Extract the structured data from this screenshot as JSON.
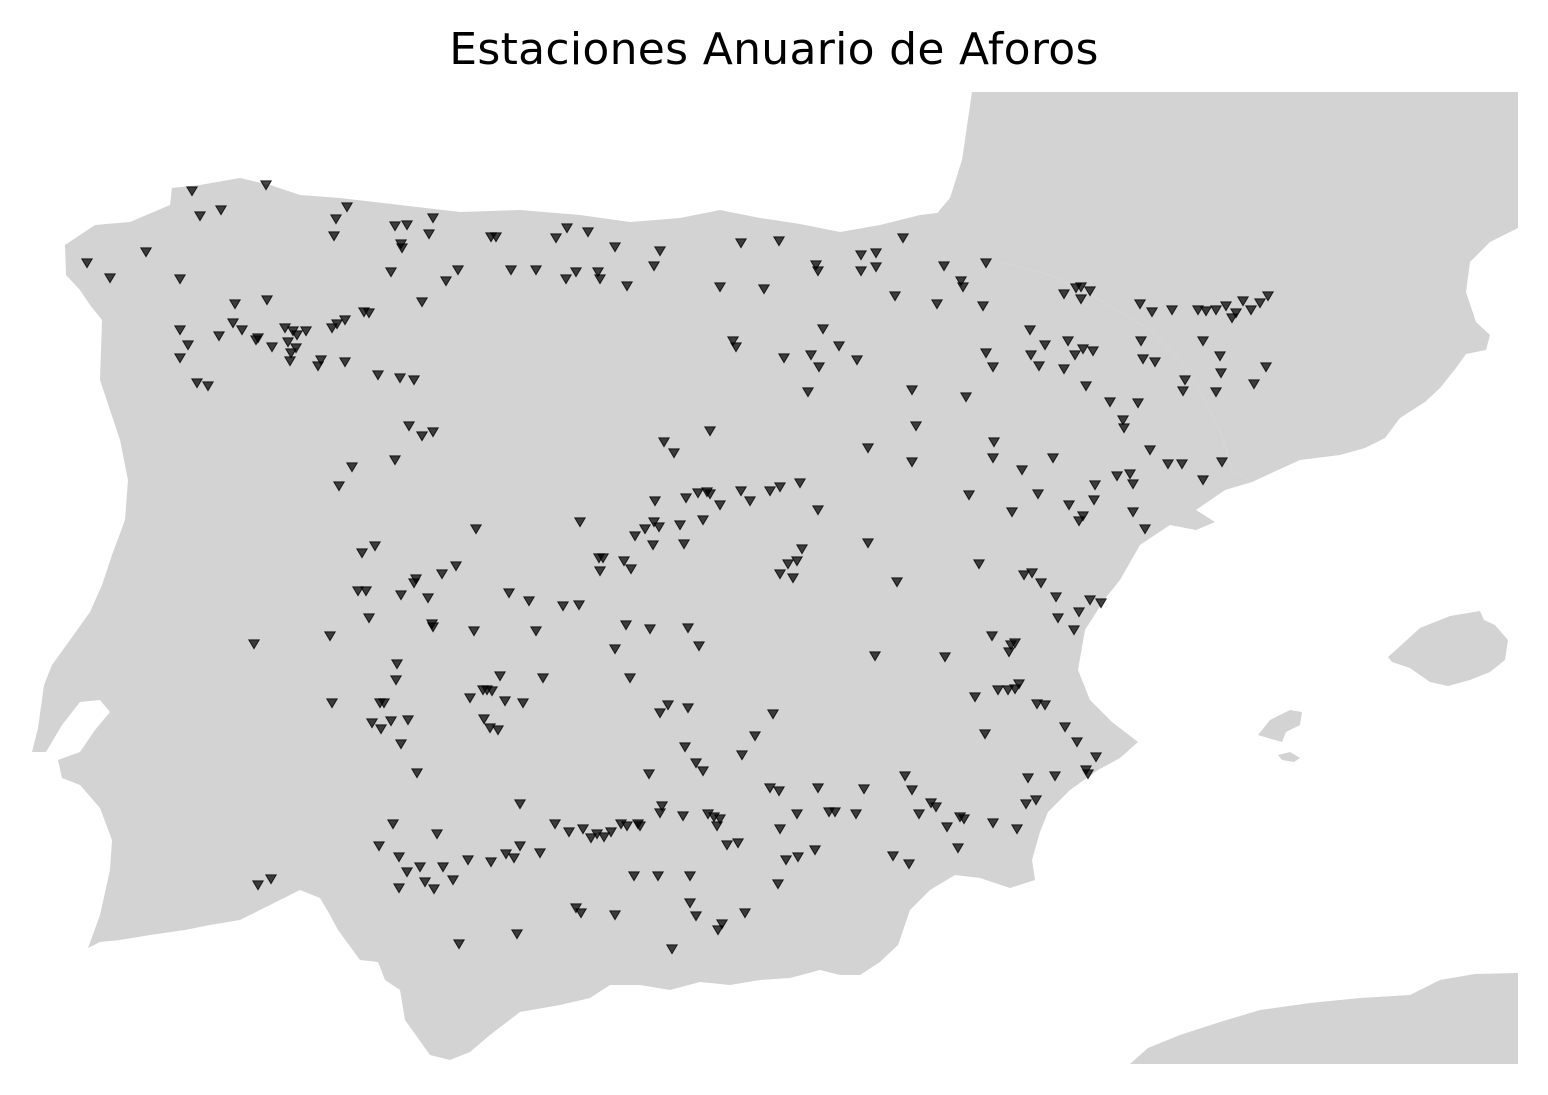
{
  "figure": {
    "title": "Estaciones Anuario de Aforos"
  },
  "colors": {
    "background": "#ffffff",
    "land": "#d3d3d3",
    "marker": "#000000"
  },
  "map": {
    "marker_symbol": "triangle-down",
    "legend": "none",
    "axes": "hidden",
    "landmasses": [
      "iberian-peninsula",
      "france",
      "mallorca",
      "ibiza",
      "formentera",
      "north-africa"
    ],
    "stations": [
      [
        87,
        263
      ],
      [
        110,
        278
      ],
      [
        146,
        252
      ],
      [
        180,
        279
      ],
      [
        192,
        191
      ],
      [
        200,
        216
      ],
      [
        221,
        210
      ],
      [
        266,
        185
      ],
      [
        336,
        219
      ],
      [
        347,
        207
      ],
      [
        334,
        236
      ],
      [
        395,
        226
      ],
      [
        407,
        225
      ],
      [
        433,
        218
      ],
      [
        401,
        244
      ],
      [
        402,
        248
      ],
      [
        429,
        234
      ],
      [
        391,
        272
      ],
      [
        422,
        302
      ],
      [
        446,
        281
      ],
      [
        458,
        270
      ],
      [
        491,
        237
      ],
      [
        496,
        237
      ],
      [
        511,
        270
      ],
      [
        536,
        270
      ],
      [
        556,
        238
      ],
      [
        567,
        228
      ],
      [
        588,
        232
      ],
      [
        576,
        272
      ],
      [
        566,
        279
      ],
      [
        598,
        272
      ],
      [
        600,
        279
      ],
      [
        615,
        247
      ],
      [
        627,
        286
      ],
      [
        654,
        266
      ],
      [
        660,
        251
      ],
      [
        720,
        287
      ],
      [
        741,
        243
      ],
      [
        779,
        241
      ],
      [
        764,
        289
      ],
      [
        816,
        265
      ],
      [
        818,
        271
      ],
      [
        861,
        255
      ],
      [
        876,
        253
      ],
      [
        861,
        271
      ],
      [
        876,
        267
      ],
      [
        903,
        238
      ],
      [
        895,
        296
      ],
      [
        937,
        304
      ],
      [
        944,
        266
      ],
      [
        961,
        281
      ],
      [
        963,
        287
      ],
      [
        986,
        263
      ],
      [
        983,
        306
      ],
      [
        1064,
        294
      ],
      [
        1076,
        288
      ],
      [
        1081,
        287
      ],
      [
        1090,
        291
      ],
      [
        1081,
        299
      ],
      [
        1140,
        304
      ],
      [
        1152,
        312
      ],
      [
        1172,
        310
      ],
      [
        1198,
        310
      ],
      [
        1206,
        311
      ],
      [
        1216,
        310
      ],
      [
        1226,
        306
      ],
      [
        1232,
        318
      ],
      [
        1236,
        313
      ],
      [
        1243,
        301
      ],
      [
        1251,
        310
      ],
      [
        1260,
        303
      ],
      [
        1268,
        296
      ],
      [
        180,
        330
      ],
      [
        188,
        345
      ],
      [
        180,
        358
      ],
      [
        197,
        383
      ],
      [
        208,
        386
      ],
      [
        219,
        336
      ],
      [
        233,
        323
      ],
      [
        235,
        304
      ],
      [
        242,
        330
      ],
      [
        256,
        340
      ],
      [
        258,
        338
      ],
      [
        267,
        300
      ],
      [
        272,
        347
      ],
      [
        285,
        328
      ],
      [
        288,
        342
      ],
      [
        293,
        331
      ],
      [
        297,
        335
      ],
      [
        291,
        353
      ],
      [
        290,
        361
      ],
      [
        296,
        348
      ],
      [
        306,
        331
      ],
      [
        321,
        360
      ],
      [
        318,
        366
      ],
      [
        332,
        328
      ],
      [
        337,
        324
      ],
      [
        345,
        320
      ],
      [
        345,
        362
      ],
      [
        364,
        312
      ],
      [
        369,
        313
      ],
      [
        378,
        375
      ],
      [
        400,
        378
      ],
      [
        414,
        380
      ],
      [
        733,
        341
      ],
      [
        736,
        347
      ],
      [
        784,
        358
      ],
      [
        808,
        392
      ],
      [
        811,
        355
      ],
      [
        819,
        367
      ],
      [
        823,
        329
      ],
      [
        839,
        346
      ],
      [
        857,
        360
      ],
      [
        912,
        390
      ],
      [
        966,
        397
      ],
      [
        986,
        353
      ],
      [
        993,
        367
      ],
      [
        1030,
        330
      ],
      [
        1031,
        355
      ],
      [
        1045,
        345
      ],
      [
        1039,
        366
      ],
      [
        1068,
        341
      ],
      [
        1075,
        355
      ],
      [
        1083,
        349
      ],
      [
        1093,
        351
      ],
      [
        1064,
        369
      ],
      [
        1086,
        386
      ],
      [
        1110,
        402
      ],
      [
        1124,
        428
      ],
      [
        1123,
        420
      ],
      [
        1138,
        403
      ],
      [
        1141,
        341
      ],
      [
        1143,
        359
      ],
      [
        1155,
        362
      ],
      [
        1185,
        380
      ],
      [
        1183,
        391
      ],
      [
        1203,
        341
      ],
      [
        1220,
        356
      ],
      [
        1221,
        373
      ],
      [
        1216,
        392
      ],
      [
        1254,
        384
      ],
      [
        1266,
        367
      ],
      [
        409,
        426
      ],
      [
        422,
        436
      ],
      [
        433,
        432
      ],
      [
        395,
        460
      ],
      [
        352,
        467
      ],
      [
        339,
        486
      ],
      [
        664,
        442
      ],
      [
        674,
        453
      ],
      [
        710,
        431
      ],
      [
        868,
        448
      ],
      [
        916,
        426
      ],
      [
        912,
        462
      ],
      [
        994,
        442
      ],
      [
        993,
        458
      ],
      [
        1022,
        470
      ],
      [
        1053,
        458
      ],
      [
        1038,
        494
      ],
      [
        1012,
        512
      ],
      [
        969,
        495
      ],
      [
        1069,
        505
      ],
      [
        1079,
        521
      ],
      [
        1083,
        516
      ],
      [
        1094,
        500
      ],
      [
        1095,
        485
      ],
      [
        1117,
        476
      ],
      [
        1130,
        474
      ],
      [
        1133,
        484
      ],
      [
        1150,
        450
      ],
      [
        1168,
        464
      ],
      [
        1182,
        464
      ],
      [
        1203,
        480
      ],
      [
        1222,
        462
      ],
      [
        1133,
        512
      ],
      [
        1145,
        529
      ],
      [
        655,
        501
      ],
      [
        654,
        522
      ],
      [
        659,
        527
      ],
      [
        635,
        536
      ],
      [
        645,
        529
      ],
      [
        653,
        545
      ],
      [
        680,
        525
      ],
      [
        684,
        544
      ],
      [
        686,
        498
      ],
      [
        703,
        520
      ],
      [
        698,
        493
      ],
      [
        707,
        492
      ],
      [
        710,
        494
      ],
      [
        720,
        505
      ],
      [
        741,
        491
      ],
      [
        750,
        501
      ],
      [
        770,
        491
      ],
      [
        780,
        487
      ],
      [
        800,
        483
      ],
      [
        818,
        510
      ],
      [
        476,
        529
      ],
      [
        580,
        522
      ],
      [
        599,
        558
      ],
      [
        603,
        558
      ],
      [
        600,
        571
      ],
      [
        624,
        561
      ],
      [
        631,
        569
      ],
      [
        362,
        553
      ],
      [
        375,
        546
      ],
      [
        358,
        591
      ],
      [
        366,
        591
      ],
      [
        401,
        595
      ],
      [
        414,
        583
      ],
      [
        416,
        579
      ],
      [
        428,
        598
      ],
      [
        442,
        574
      ],
      [
        456,
        566
      ],
      [
        369,
        618
      ],
      [
        432,
        624
      ],
      [
        433,
        627
      ],
      [
        474,
        631
      ],
      [
        509,
        593
      ],
      [
        529,
        601
      ],
      [
        536,
        631
      ],
      [
        563,
        606
      ],
      [
        579,
        605
      ],
      [
        254,
        644
      ],
      [
        330,
        636
      ],
      [
        802,
        549
      ],
      [
        797,
        561
      ],
      [
        788,
        564
      ],
      [
        780,
        574
      ],
      [
        793,
        578
      ],
      [
        868,
        543
      ],
      [
        897,
        582
      ],
      [
        979,
        564
      ],
      [
        1024,
        575
      ],
      [
        1032,
        573
      ],
      [
        1041,
        583
      ],
      [
        1056,
        597
      ],
      [
        1079,
        612
      ],
      [
        1090,
        600
      ],
      [
        1101,
        603
      ],
      [
        1058,
        618
      ],
      [
        1074,
        630
      ],
      [
        992,
        636
      ],
      [
        1011,
        645
      ],
      [
        1015,
        643
      ],
      [
        1009,
        652
      ],
      [
        626,
        625
      ],
      [
        650,
        629
      ],
      [
        688,
        628
      ],
      [
        699,
        646
      ],
      [
        615,
        649
      ],
      [
        630,
        678
      ],
      [
        875,
        656
      ],
      [
        945,
        657
      ],
      [
        332,
        703
      ],
      [
        372,
        723
      ],
      [
        380,
        703
      ],
      [
        384,
        703
      ],
      [
        381,
        729
      ],
      [
        391,
        721
      ],
      [
        408,
        720
      ],
      [
        397,
        664
      ],
      [
        396,
        680
      ],
      [
        401,
        744
      ],
      [
        417,
        773
      ],
      [
        470,
        698
      ],
      [
        483,
        690
      ],
      [
        487,
        690
      ],
      [
        492,
        691
      ],
      [
        500,
        676
      ],
      [
        505,
        701
      ],
      [
        523,
        703
      ],
      [
        543,
        678
      ],
      [
        484,
        719
      ],
      [
        490,
        728
      ],
      [
        498,
        730
      ],
      [
        660,
        713
      ],
      [
        668,
        705
      ],
      [
        688,
        708
      ],
      [
        685,
        747
      ],
      [
        696,
        763
      ],
      [
        703,
        771
      ],
      [
        742,
        755
      ],
      [
        755,
        736
      ],
      [
        773,
        714
      ],
      [
        975,
        697
      ],
      [
        998,
        690
      ],
      [
        1008,
        690
      ],
      [
        1015,
        689
      ],
      [
        1019,
        684
      ],
      [
        1037,
        704
      ],
      [
        1045,
        705
      ],
      [
        1065,
        727
      ],
      [
        985,
        734
      ],
      [
        1077,
        742
      ],
      [
        1096,
        757
      ],
      [
        1086,
        770
      ],
      [
        1088,
        774
      ],
      [
        1055,
        776
      ],
      [
        1028,
        778
      ],
      [
        1036,
        800
      ],
      [
        1026,
        804
      ],
      [
        1017,
        829
      ],
      [
        993,
        823
      ],
      [
        960,
        817
      ],
      [
        964,
        819
      ],
      [
        947,
        827
      ],
      [
        958,
        848
      ],
      [
        931,
        803
      ],
      [
        912,
        790
      ],
      [
        905,
        776
      ],
      [
        919,
        814
      ],
      [
        936,
        807
      ],
      [
        393,
        824
      ],
      [
        379,
        846
      ],
      [
        399,
        857
      ],
      [
        407,
        872
      ],
      [
        420,
        867
      ],
      [
        399,
        888
      ],
      [
        425,
        882
      ],
      [
        434,
        889
      ],
      [
        437,
        834
      ],
      [
        443,
        867
      ],
      [
        453,
        880
      ],
      [
        468,
        860
      ],
      [
        491,
        862
      ],
      [
        506,
        854
      ],
      [
        514,
        858
      ],
      [
        520,
        846
      ],
      [
        540,
        853
      ],
      [
        520,
        804
      ],
      [
        555,
        824
      ],
      [
        569,
        832
      ],
      [
        583,
        829
      ],
      [
        591,
        838
      ],
      [
        597,
        834
      ],
      [
        604,
        837
      ],
      [
        611,
        832
      ],
      [
        621,
        824
      ],
      [
        627,
        826
      ],
      [
        638,
        824
      ],
      [
        640,
        826
      ],
      [
        660,
        813
      ],
      [
        662,
        806
      ],
      [
        683,
        816
      ],
      [
        708,
        814
      ],
      [
        714,
        817
      ],
      [
        717,
        826
      ],
      [
        720,
        819
      ],
      [
        727,
        845
      ],
      [
        738,
        843
      ],
      [
        780,
        829
      ],
      [
        797,
        814
      ],
      [
        818,
        788
      ],
      [
        829,
        812
      ],
      [
        835,
        812
      ],
      [
        856,
        814
      ],
      [
        864,
        789
      ],
      [
        770,
        788
      ],
      [
        779,
        791
      ],
      [
        798,
        857
      ],
      [
        786,
        860
      ],
      [
        815,
        850
      ],
      [
        893,
        856
      ],
      [
        909,
        864
      ],
      [
        649,
        774
      ],
      [
        258,
        885
      ],
      [
        271,
        879
      ],
      [
        634,
        876
      ],
      [
        658,
        876
      ],
      [
        690,
        876
      ],
      [
        690,
        903
      ],
      [
        696,
        916
      ],
      [
        718,
        930
      ],
      [
        722,
        924
      ],
      [
        745,
        913
      ],
      [
        778,
        884
      ],
      [
        576,
        908
      ],
      [
        581,
        913
      ],
      [
        615,
        915
      ],
      [
        517,
        934
      ],
      [
        459,
        944
      ],
      [
        672,
        949
      ]
    ]
  }
}
